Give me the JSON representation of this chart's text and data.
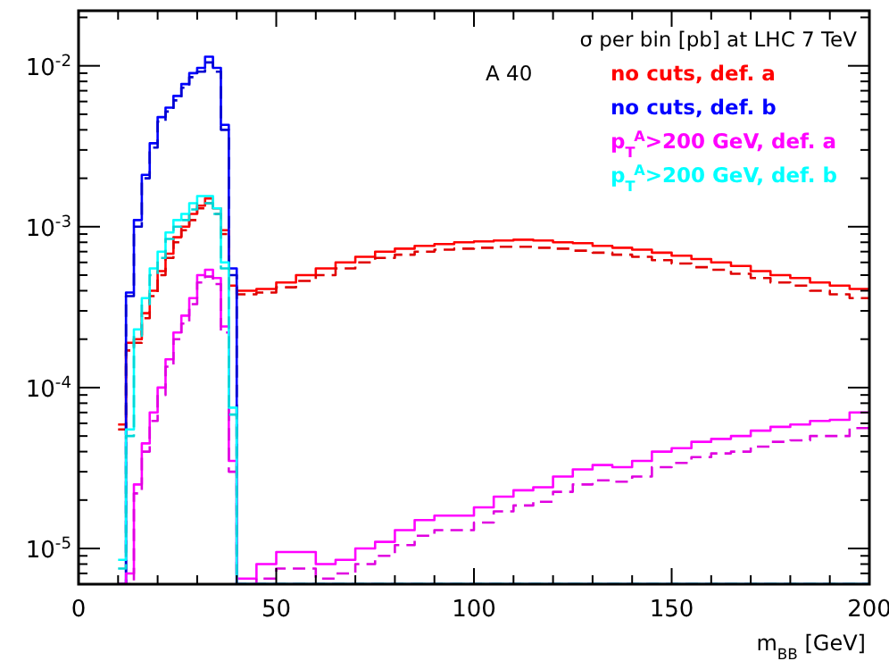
{
  "chart_data": {
    "type": "histogram",
    "xlabel": "m$_{BB}$ [GeV]",
    "log": "y",
    "legend": "top right",
    "grid": false,
    "annotations": [
      "σ per bin [pb]   at LHC 7 TeV",
      "A 40"
    ],
    "xlim": [
      0,
      200
    ],
    "xticks": [
      0,
      {
        "value": 10,
        "label": null
      },
      {
        "value": 20,
        "label": null
      },
      {
        "value": 30,
        "label": null
      },
      {
        "value": 40,
        "label": null
      },
      50,
      {
        "value": 60,
        "label": null
      },
      {
        "value": 70,
        "label": null
      },
      {
        "value": 80,
        "label": null
      },
      {
        "value": 90,
        "label": null
      },
      100,
      {
        "value": 110,
        "label": null
      },
      {
        "value": 120,
        "label": null
      },
      {
        "value": 130,
        "label": null
      },
      {
        "value": 140,
        "label": null
      },
      150,
      {
        "value": 160,
        "label": null
      },
      {
        "value": 170,
        "label": null
      },
      {
        "value": 180,
        "label": null
      },
      {
        "value": 190,
        "label": null
      },
      200
    ],
    "ylim": [
      6e-06,
      0.022
    ],
    "yticks": [
      {
        "value": 7e-06,
        "label": null
      },
      {
        "value": 8e-06,
        "label": null
      },
      {
        "value": 9e-06,
        "label": null
      },
      {
        "value": 1e-05,
        "label": "10$^{-5}$"
      },
      {
        "value": 2e-05,
        "label": null
      },
      {
        "value": 3e-05,
        "label": null
      },
      {
        "value": 4e-05,
        "label": null
      },
      {
        "value": 5e-05,
        "label": null
      },
      {
        "value": 6e-05,
        "label": null
      },
      {
        "value": 7e-05,
        "label": null
      },
      {
        "value": 8e-05,
        "label": null
      },
      {
        "value": 9e-05,
        "label": null
      },
      {
        "value": 0.0001,
        "label": "10$^{-4}$"
      },
      {
        "value": 0.0002,
        "label": null
      },
      {
        "value": 0.0003,
        "label": null
      },
      {
        "value": 0.0004,
        "label": null
      },
      {
        "value": 0.0005,
        "label": null
      },
      {
        "value": 0.0006,
        "label": null
      },
      {
        "value": 0.0007,
        "label": null
      },
      {
        "value": 0.0008,
        "label": null
      },
      {
        "value": 0.0009,
        "label": null
      },
      {
        "value": 0.001,
        "label": "10$^{-3}$"
      },
      {
        "value": 0.002,
        "label": null
      },
      {
        "value": 0.003,
        "label": null
      },
      {
        "value": 0.004,
        "label": null
      },
      {
        "value": 0.005,
        "label": null
      },
      {
        "value": 0.006,
        "label": null
      },
      {
        "value": 0.007,
        "label": null
      },
      {
        "value": 0.008,
        "label": null
      },
      {
        "value": 0.009,
        "label": null
      },
      {
        "value": 0.01,
        "label": "10$^{-2}$"
      },
      {
        "value": 0.02,
        "label": null
      }
    ],
    "bins": [
      10,
      12,
      14,
      16,
      18,
      20,
      22,
      24,
      26,
      28,
      30,
      32,
      34,
      36,
      38,
      40,
      45,
      50,
      55,
      60,
      65,
      70,
      75,
      80,
      85,
      90,
      95,
      100,
      105,
      110,
      115,
      120,
      125,
      130,
      135,
      140,
      145,
      150,
      155,
      160,
      165,
      170,
      175,
      180,
      185,
      190,
      195,
      200
    ],
    "series": [
      {
        "name": "no cuts, def. a",
        "color": "#ff0000",
        "line_style": "solid",
        "values": [
          5.9e-05,
          0.00019,
          0.0002,
          0.00029,
          0.0004,
          0.00053,
          0.00068,
          0.00086,
          0.001,
          0.0012,
          0.00135,
          0.0015,
          0.0013,
          0.00095,
          0.00043,
          0.0004,
          0.00041,
          0.00045,
          0.0005,
          0.00055,
          0.0006,
          0.00065,
          0.0007,
          0.00073,
          0.00076,
          0.00078,
          0.0008,
          0.00081,
          0.00082,
          0.00083,
          0.00082,
          0.0008,
          0.00079,
          0.00076,
          0.00074,
          0.00072,
          0.00069,
          0.00066,
          0.00063,
          0.0006,
          0.00057,
          0.00053,
          0.0005,
          0.00048,
          0.00045,
          0.00043,
          0.00041
        ]
      },
      {
        "color": "#e00000",
        "line_style": "dashed",
        "values": [
          5.5e-05,
          0.00017,
          0.00019,
          0.00027,
          0.00037,
          0.0005,
          0.00064,
          0.0008,
          0.00095,
          0.0011,
          0.0013,
          0.0014,
          0.0012,
          0.0009,
          0.0004,
          0.00038,
          0.00039,
          0.00042,
          0.00046,
          0.0005,
          0.00055,
          0.0006,
          0.00064,
          0.00067,
          0.0007,
          0.00072,
          0.00073,
          0.00074,
          0.00075,
          0.00075,
          0.00074,
          0.00073,
          0.00071,
          0.00069,
          0.00067,
          0.00065,
          0.00062,
          0.00059,
          0.00056,
          0.00054,
          0.00051,
          0.00048,
          0.00045,
          0.00043,
          0.0004,
          0.00038,
          0.00036
        ]
      },
      {
        "name": "no cuts, def. b",
        "color": "#0000ff",
        "line_style": "solid",
        "values": [
          null,
          0.00039,
          0.0011,
          0.0021,
          0.0033,
          0.0048,
          0.0055,
          0.0065,
          0.0077,
          0.009,
          0.0097,
          0.0114,
          0.0097,
          0.0043,
          0.00055,
          null,
          null,
          null,
          null,
          null,
          null,
          null,
          null,
          null,
          null,
          null,
          null,
          null,
          null,
          null,
          null,
          null,
          null,
          null,
          null,
          null,
          null,
          null,
          null,
          null,
          null,
          null,
          null,
          null,
          null,
          null,
          null
        ]
      },
      {
        "color": "#0000d0",
        "line_style": "dashed",
        "values": [
          null,
          0.00037,
          0.001,
          0.002,
          0.0031,
          0.0045,
          0.0052,
          0.0061,
          0.0073,
          0.0085,
          0.0092,
          0.0105,
          0.0092,
          0.004,
          0.0005,
          null,
          null,
          null,
          null,
          null,
          null,
          null,
          null,
          null,
          null,
          null,
          null,
          null,
          null,
          null,
          null,
          null,
          null,
          null,
          null,
          null,
          null,
          null,
          null,
          null,
          null,
          null,
          null,
          null,
          null,
          null,
          null
        ]
      },
      {
        "name": "p$_{T}$$^{A}$>200 GeV, def. a",
        "color": "#ff00ff",
        "line_style": "solid",
        "values": [
          null,
          7e-06,
          2.5e-05,
          4.5e-05,
          7e-05,
          0.0001,
          0.00015,
          0.00022,
          0.00028,
          0.00036,
          0.0005,
          0.00054,
          0.00048,
          0.00024,
          3.5e-05,
          6.5e-06,
          8e-06,
          9.5e-06,
          9.5e-06,
          8e-06,
          8.5e-06,
          1e-05,
          1.1e-05,
          1.3e-05,
          1.5e-05,
          1.6e-05,
          1.6e-05,
          1.8e-05,
          2.1e-05,
          2.3e-05,
          2.4e-05,
          2.8e-05,
          3.1e-05,
          3.3e-05,
          3.2e-05,
          3.5e-05,
          4e-05,
          4.2e-05,
          4.6e-05,
          4.8e-05,
          5e-05,
          5.4e-05,
          5.7e-05,
          5.9e-05,
          6.2e-05,
          6.3e-05,
          7e-05
        ]
      },
      {
        "color": "#e000e0",
        "line_style": "dashed",
        "values": [
          null,
          null,
          2.2e-05,
          4e-05,
          6.2e-05,
          9e-05,
          0.000135,
          0.0002,
          0.00025,
          0.00033,
          0.00045,
          0.00049,
          0.00044,
          0.00022,
          3e-05,
          null,
          6.5e-06,
          7.5e-06,
          7.5e-06,
          6.5e-06,
          7e-06,
          8e-06,
          9e-06,
          1.05e-05,
          1.2e-05,
          1.3e-05,
          1.3e-05,
          1.45e-05,
          1.7e-05,
          1.85e-05,
          1.95e-05,
          2.25e-05,
          2.5e-05,
          2.65e-05,
          2.6e-05,
          2.8e-05,
          3.2e-05,
          3.4e-05,
          3.7e-05,
          3.9e-05,
          4e-05,
          4.3e-05,
          4.6e-05,
          4.7e-05,
          5e-05,
          5e-05,
          5.6e-05
        ]
      },
      {
        "name": "p$_{T}$$^{A}$>200 GeV, def. b",
        "color": "#00ffff",
        "line_style": "solid",
        "values": [
          8.5e-06,
          5.5e-05,
          0.00023,
          0.00036,
          0.00055,
          0.0007,
          0.00092,
          0.0011,
          0.0012,
          0.0014,
          0.00155,
          0.00155,
          0.0013,
          0.0006,
          7.5e-05,
          null,
          null,
          null,
          null,
          null,
          null,
          null,
          null,
          null,
          null,
          null,
          null,
          null,
          null,
          null,
          null,
          null,
          null,
          null,
          null,
          null,
          null,
          null,
          null,
          null,
          null,
          null,
          null,
          null,
          null,
          null,
          null
        ]
      },
      {
        "color": "#00d8d8",
        "line_style": "dashed",
        "values": [
          7.5e-06,
          5e-05,
          0.00021,
          0.00033,
          0.0005,
          0.00064,
          0.00084,
          0.001,
          0.0011,
          0.00128,
          0.0014,
          0.0014,
          0.0012,
          0.00055,
          6.8e-05,
          null,
          null,
          null,
          null,
          null,
          null,
          null,
          null,
          null,
          null,
          null,
          null,
          null,
          null,
          null,
          null,
          null,
          null,
          null,
          null,
          null,
          null,
          null,
          null,
          null,
          null,
          null,
          null,
          null,
          null,
          null,
          null
        ]
      }
    ]
  }
}
